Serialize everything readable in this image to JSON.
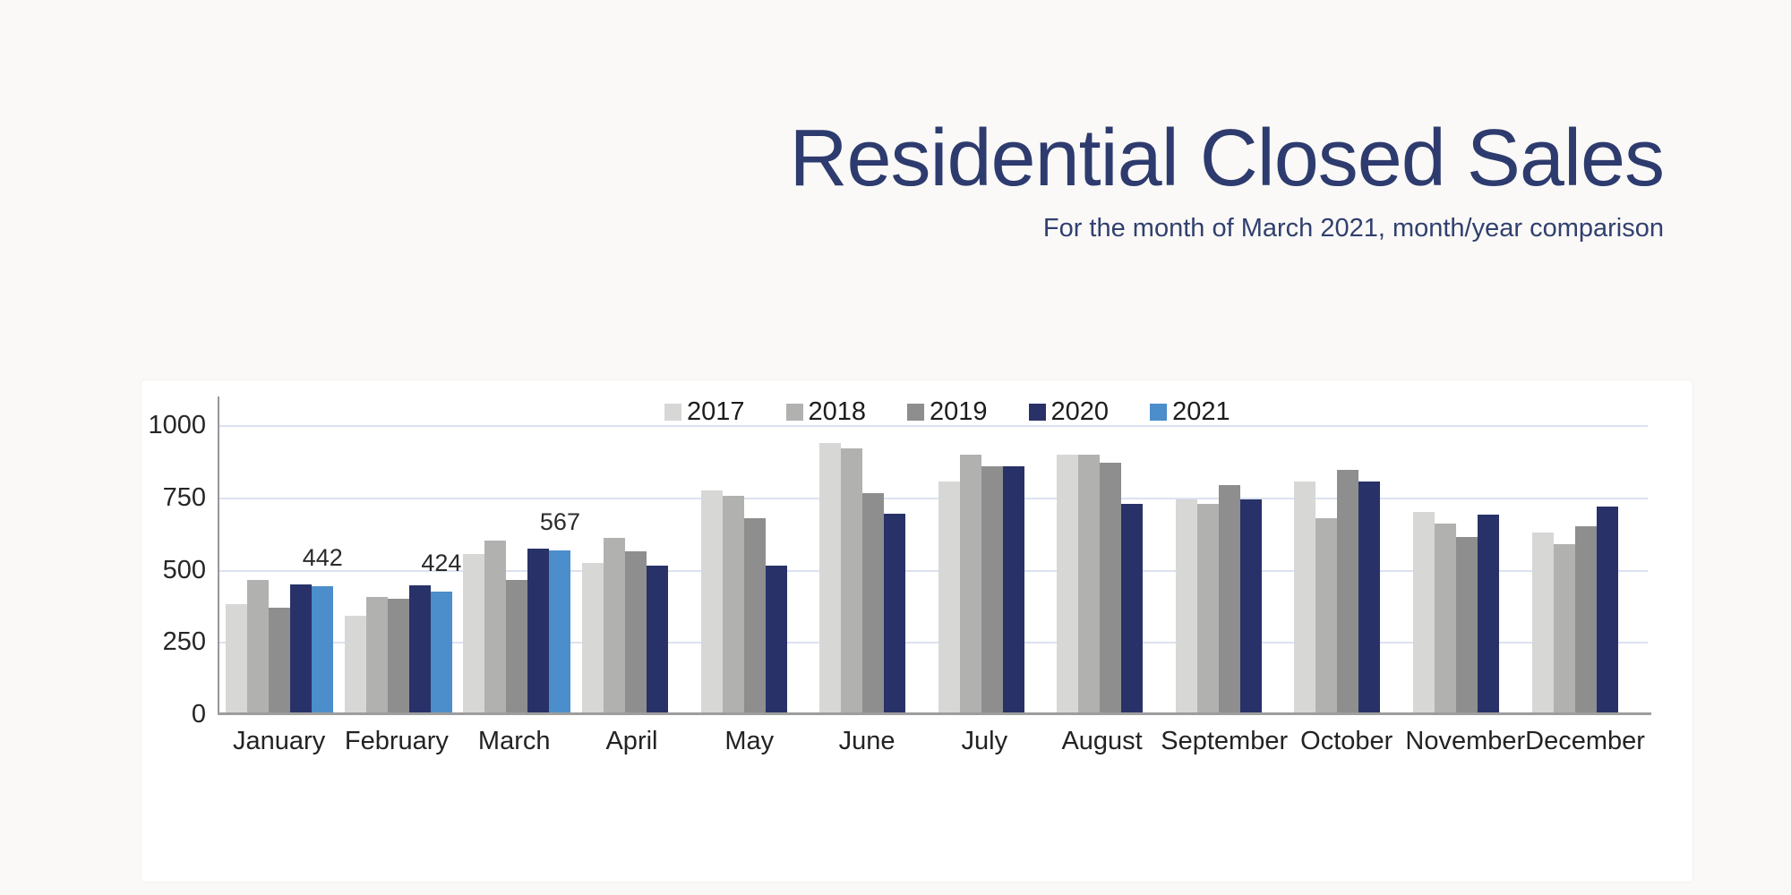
{
  "title": "Residential Closed Sales",
  "subtitle": "For the month of March 2021, month/year comparison",
  "chart_data": {
    "type": "bar",
    "title": "Residential Closed Sales",
    "subtitle": "For the month of March 2021, month/year comparison",
    "categories": [
      "January",
      "February",
      "March",
      "April",
      "May",
      "June",
      "July",
      "August",
      "September",
      "October",
      "November",
      "December"
    ],
    "series": [
      {
        "name": "2017",
        "color": "#d7d7d6",
        "show_labels": false,
        "values": [
          380,
          340,
          555,
          525,
          775,
          940,
          805,
          900,
          745,
          805,
          700,
          630
        ]
      },
      {
        "name": "2018",
        "color": "#b1b1b0",
        "show_labels": false,
        "values": [
          465,
          405,
          600,
          610,
          755,
          920,
          900,
          900,
          730,
          680,
          660,
          590
        ]
      },
      {
        "name": "2019",
        "color": "#8e8e8e",
        "show_labels": false,
        "values": [
          370,
          400,
          465,
          565,
          680,
          765,
          860,
          870,
          795,
          845,
          615,
          650
        ]
      },
      {
        "name": "2020",
        "color": "#283268",
        "show_labels": false,
        "values": [
          450,
          445,
          575,
          515,
          515,
          695,
          860,
          730,
          745,
          805,
          690,
          720
        ]
      },
      {
        "name": "2021",
        "color": "#4c8dcb",
        "show_labels": true,
        "values": [
          442,
          424,
          567,
          null,
          null,
          null,
          null,
          null,
          null,
          null,
          null,
          null
        ]
      }
    ],
    "data_labels": [
      "442",
      "424",
      "567"
    ],
    "y_ticks": [
      0,
      250,
      500,
      750,
      1000
    ],
    "ylim": [
      0,
      1000
    ],
    "grid": true,
    "legend_position": "top-center",
    "colors": {
      "title_text": "#2e3b6e",
      "axis_text": "#262626",
      "gridline": "#dbe2f0",
      "axis_line": "#9d9d9d"
    }
  }
}
